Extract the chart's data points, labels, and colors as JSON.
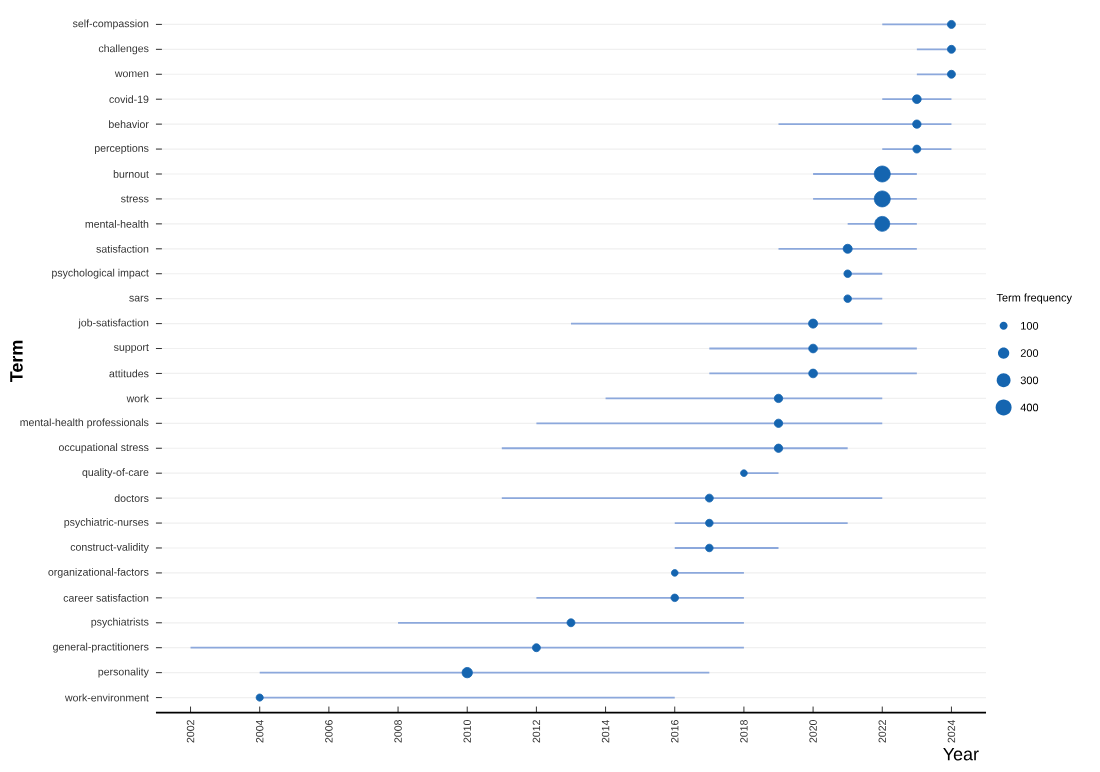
{
  "chart_data": {
    "type": "bubble",
    "orientation": "horizontal",
    "xlabel": "Year",
    "ylabel": "Term",
    "legend_title": "Term frequency",
    "grid": "y",
    "categories": [
      "self-compassion",
      "challenges",
      "women",
      "covid-19",
      "behavior",
      "perceptions",
      "burnout",
      "stress",
      "mental-health",
      "satisfaction",
      "psychological impact",
      "sars",
      "job-satisfaction",
      "support",
      "attitudes",
      "work",
      "mental-health professionals",
      "occupational stress",
      "quality-of-care",
      "doctors",
      "psychiatric-nurses",
      "construct-validity",
      "organizational-factors",
      "career satisfaction",
      "psychiatrists",
      "general-practitioners",
      "personality",
      "work-environment"
    ],
    "values": [
      2024,
      2024,
      2024,
      2023,
      2023,
      2023,
      2022,
      2022,
      2022,
      2021,
      2021,
      2021,
      2020,
      2020,
      2020,
      2019,
      2019,
      2019,
      2018,
      2017,
      2017,
      2017,
      2016,
      2016,
      2013,
      2012,
      2010,
      2004
    ],
    "errors": [
      [
        2022,
        2024
      ],
      [
        2023,
        2024
      ],
      [
        2023,
        2024
      ],
      [
        2022,
        2024
      ],
      [
        2019,
        2024
      ],
      [
        2022,
        2024
      ],
      [
        2020,
        2023
      ],
      [
        2020,
        2023
      ],
      [
        2021,
        2023
      ],
      [
        2019,
        2023
      ],
      [
        2021,
        2022
      ],
      [
        2021,
        2022
      ],
      [
        2013,
        2022
      ],
      [
        2017,
        2023
      ],
      [
        2017,
        2023
      ],
      [
        2014,
        2022
      ],
      [
        2012,
        2022
      ],
      [
        2011,
        2021
      ],
      [
        2018,
        2019
      ],
      [
        2011,
        2022
      ],
      [
        2016,
        2021
      ],
      [
        2016,
        2019
      ],
      [
        2016,
        2018
      ],
      [
        2012,
        2018
      ],
      [
        2008,
        2018
      ],
      [
        2002,
        2018
      ],
      [
        2004,
        2017
      ],
      [
        2004,
        2016
      ]
    ],
    "sizes": [
      100,
      100,
      100,
      120,
      110,
      100,
      400,
      400,
      350,
      130,
      90,
      90,
      130,
      120,
      120,
      110,
      110,
      110,
      70,
      100,
      90,
      90,
      70,
      90,
      100,
      100,
      170,
      80
    ],
    "size_legend": [
      100,
      200,
      300,
      400
    ],
    "color": "#1565b0",
    "xlim": [
      2001,
      2025
    ],
    "xticks": [
      2002,
      2004,
      2006,
      2008,
      2010,
      2012,
      2014,
      2016,
      2018,
      2020,
      2022,
      2024
    ]
  }
}
